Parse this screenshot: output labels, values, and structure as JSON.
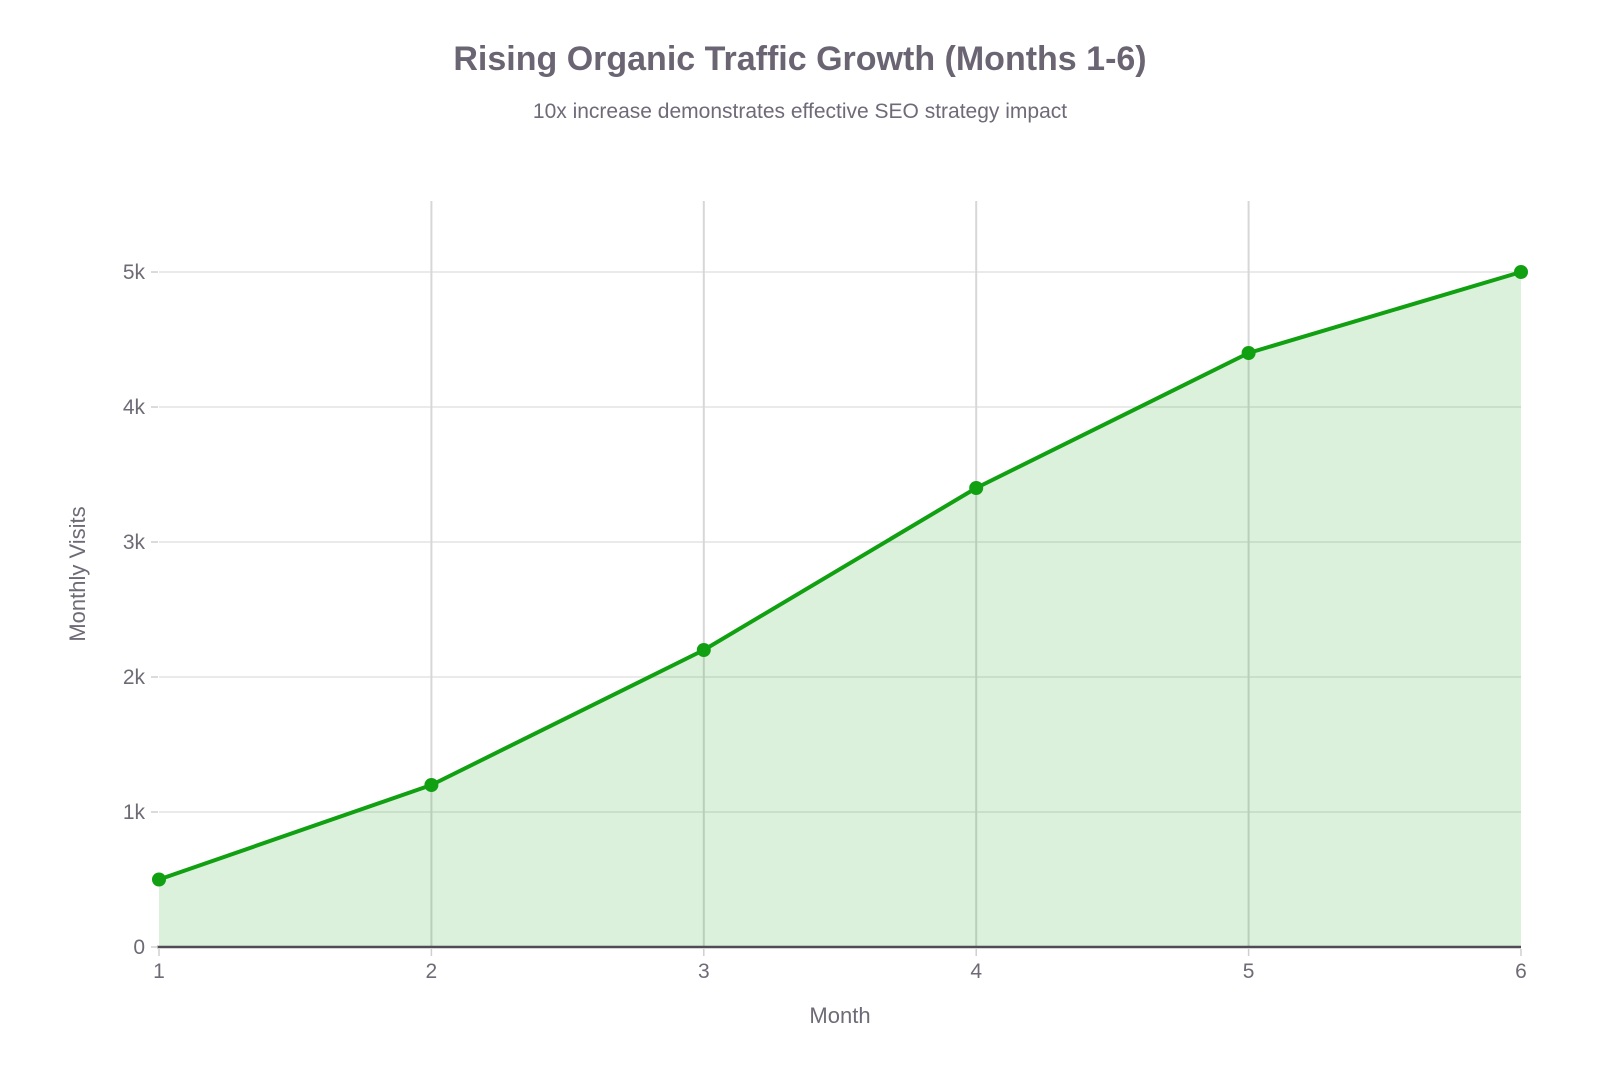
{
  "chart_data": {
    "type": "area",
    "title": "Rising Organic Traffic Growth (Months 1-6)",
    "subtitle": "10x increase demonstrates effective SEO strategy impact",
    "xlabel": "Month",
    "ylabel": "Monthly Visits",
    "x": [
      1,
      2,
      3,
      4,
      5,
      6
    ],
    "series": [
      {
        "name": "Monthly Visits",
        "values": [
          500,
          1200,
          2200,
          3400,
          4400,
          5000
        ]
      }
    ],
    "xlim": [
      1,
      6
    ],
    "ylim": [
      0,
      5526
    ],
    "xtick_values": [
      1,
      2,
      3,
      4,
      5,
      6
    ],
    "xtick_labels": [
      "1",
      "2",
      "3",
      "4",
      "5",
      "6"
    ],
    "ytick_values": [
      0,
      1000,
      2000,
      3000,
      4000,
      5000
    ],
    "ytick_labels": [
      "0",
      "1k",
      "2k",
      "3k",
      "4k",
      "5k"
    ],
    "grid": true,
    "legend_position": "none",
    "marker_shape": "circle"
  },
  "colors": {
    "line": "#11a011",
    "marker": "#11a011",
    "fill": "rgba(17,160,17,0.15)",
    "grid_h": "#e3e3e3",
    "grid_v": "#d7d7d7",
    "axis_line": "#514b55",
    "tick_mark": "#cfcfcf",
    "tick_text": "#6f6b76",
    "title_text": "#6b6472"
  }
}
